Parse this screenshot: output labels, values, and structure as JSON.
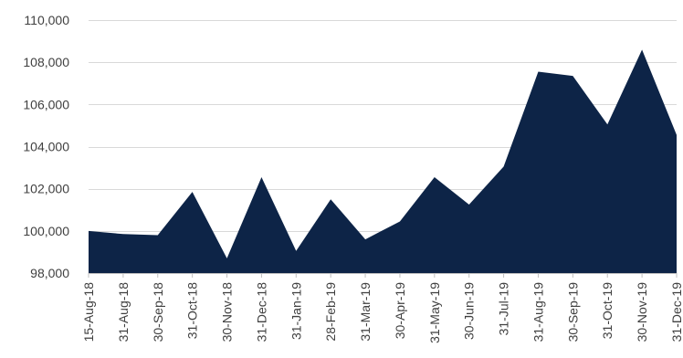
{
  "chart_data": {
    "type": "area",
    "title": "",
    "xlabel": "",
    "ylabel": "",
    "categories": [
      "15-Aug-18",
      "31-Aug-18",
      "30-Sep-18",
      "31-Oct-18",
      "30-Nov-18",
      "31-Dec-18",
      "31-Jan-19",
      "28-Feb-19",
      "31-Mar-19",
      "30-Apr-19",
      "31-May-19",
      "30-Jun-19",
      "31-Jul-19",
      "31-Aug-19",
      "30-Sep-19",
      "31-Oct-19",
      "30-Nov-19",
      "31-Dec-19"
    ],
    "series": [
      {
        "values": [
          100000,
          99850,
          99800,
          101850,
          98700,
          102550,
          99050,
          101500,
          99600,
          100450,
          102550,
          101250,
          103050,
          107550,
          107350,
          105050,
          108600,
          104550
        ],
        "color": "#0d2447"
      }
    ],
    "ylim": [
      98000,
      110000
    ],
    "yticks": [
      98000,
      100000,
      102000,
      104000,
      106000,
      108000,
      110000
    ],
    "ytick_labels": [
      "98,000",
      "100,000",
      "102,000",
      "104,000",
      "106,000",
      "108,000",
      "110,000"
    ],
    "grid": true,
    "legend": "none"
  }
}
